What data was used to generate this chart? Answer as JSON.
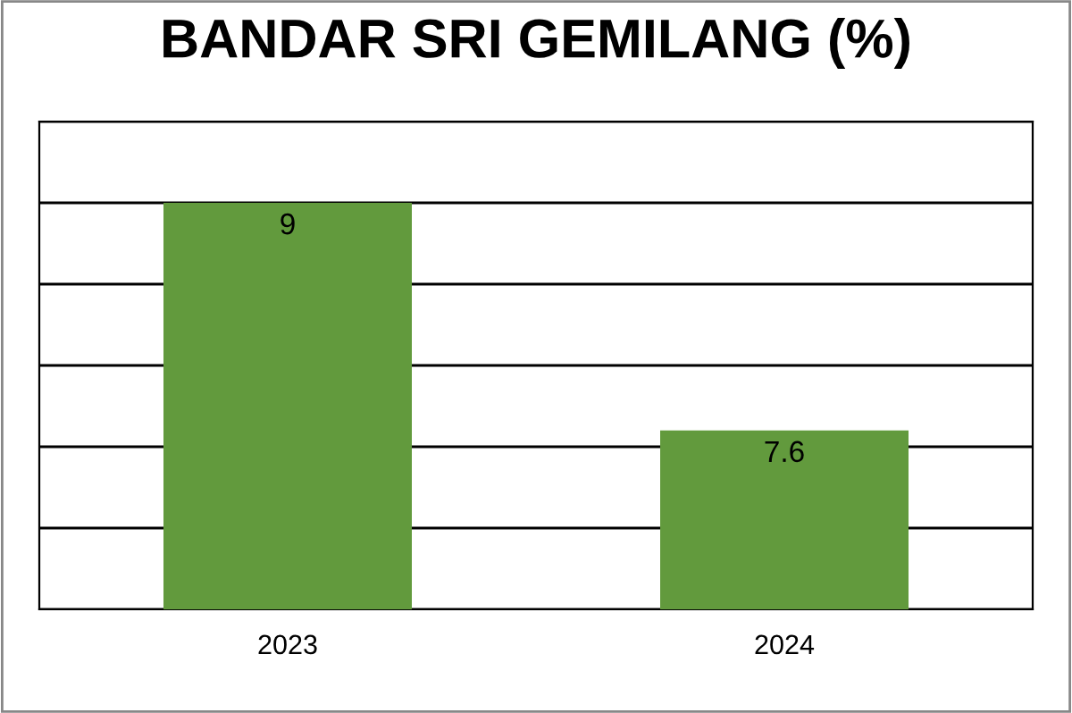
{
  "chart_data": {
    "type": "bar",
    "title": "BANDAR SRI GEMILANG (%)",
    "categories": [
      "2023",
      "2024"
    ],
    "values": [
      9,
      7.6
    ],
    "color": "#629a3d",
    "ylim": [
      6.5,
      9.5
    ],
    "yticks": [
      {
        "value": 6.5,
        "label": null
      },
      {
        "value": 7,
        "label": null
      },
      {
        "value": 7.5,
        "label": null
      },
      {
        "value": 8,
        "label": null
      },
      {
        "value": 8.5,
        "label": null
      },
      {
        "value": 9,
        "label": null
      },
      {
        "value": 9.5,
        "label": null
      }
    ],
    "tick_labels": "x",
    "grid": "y",
    "data_labels": true
  }
}
